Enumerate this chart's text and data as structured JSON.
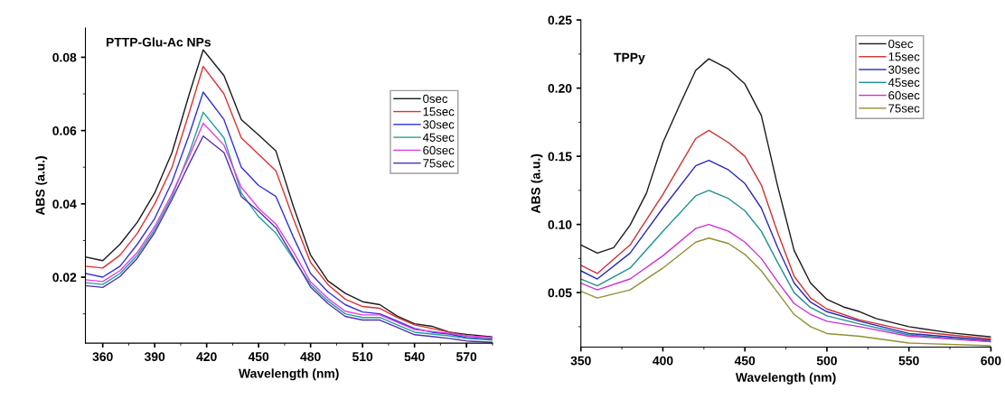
{
  "chart_data": [
    {
      "type": "line",
      "title": "PTTP-Glu-Ac NPs",
      "xlabel": "Wavelength (nm)",
      "ylabel": "ABS (a.u.)",
      "xlim": [
        350,
        585
      ],
      "xticks": [
        360,
        390,
        420,
        450,
        480,
        510,
        540,
        570
      ],
      "ylim": [
        0.002,
        0.088
      ],
      "yticks": [
        0.02,
        0.04,
        0.06,
        0.08
      ],
      "legend": "top right",
      "grid": false,
      "x": [
        350,
        360,
        370,
        380,
        390,
        400,
        410,
        418,
        430,
        440,
        450,
        460,
        470,
        480,
        490,
        500,
        510,
        520,
        530,
        540,
        550,
        560,
        570,
        585
      ],
      "series": [
        {
          "name": "0sec",
          "color": "#1a1a1a",
          "values": [
            0.0255,
            0.0245,
            0.029,
            0.035,
            0.043,
            0.054,
            0.07,
            0.082,
            0.075,
            0.063,
            0.0588,
            0.0544,
            0.0394,
            0.026,
            0.019,
            0.0156,
            0.0133,
            0.0125,
            0.0094,
            0.0073,
            0.0066,
            0.005,
            0.0044,
            0.0037
          ]
        },
        {
          "name": "15sec",
          "color": "#e03030",
          "values": [
            0.023,
            0.0225,
            0.026,
            0.032,
            0.04,
            0.05,
            0.065,
            0.0775,
            0.07,
            0.058,
            0.0535,
            0.049,
            0.036,
            0.024,
            0.018,
            0.014,
            0.012,
            0.0115,
            0.009,
            0.007,
            0.006,
            0.005,
            0.004,
            0.0035
          ]
        },
        {
          "name": "30sec",
          "color": "#3030e0",
          "values": [
            0.021,
            0.02,
            0.023,
            0.029,
            0.036,
            0.046,
            0.059,
            0.0705,
            0.063,
            0.05,
            0.045,
            0.042,
            0.031,
            0.021,
            0.016,
            0.0125,
            0.0105,
            0.01,
            0.008,
            0.006,
            0.005,
            0.0045,
            0.0035,
            0.003
          ]
        },
        {
          "name": "45sec",
          "color": "#20a0a0",
          "values": [
            0.0185,
            0.018,
            0.021,
            0.026,
            0.033,
            0.042,
            0.054,
            0.065,
            0.058,
            0.043,
            0.0365,
            0.032,
            0.025,
            0.018,
            0.0135,
            0.01,
            0.009,
            0.009,
            0.007,
            0.005,
            0.0045,
            0.004,
            0.0033,
            0.0028
          ]
        },
        {
          "name": "60sec",
          "color": "#e040e0",
          "values": [
            0.0193,
            0.0188,
            0.0218,
            0.0268,
            0.0338,
            0.0428,
            0.053,
            0.062,
            0.056,
            0.0445,
            0.0388,
            0.0345,
            0.027,
            0.0187,
            0.0142,
            0.0107,
            0.0097,
            0.0097,
            0.0077,
            0.0057,
            0.0052,
            0.0047,
            0.004,
            0.0035
          ]
        },
        {
          "name": "75sec",
          "color": "#5030b0",
          "values": [
            0.0177,
            0.0172,
            0.0202,
            0.0252,
            0.0322,
            0.0412,
            0.051,
            0.0585,
            0.054,
            0.042,
            0.038,
            0.0335,
            0.0255,
            0.0173,
            0.0128,
            0.0093,
            0.0083,
            0.0083,
            0.0063,
            0.0043,
            0.0038,
            0.0033,
            0.0026,
            0.0022
          ]
        }
      ]
    },
    {
      "type": "line",
      "title": "TPPy",
      "xlabel": "Wavelength (nm)",
      "ylabel": "ABS (a.u.)",
      "xlim": [
        350,
        600
      ],
      "xticks": [
        350,
        400,
        450,
        500,
        550,
        600
      ],
      "ylim": [
        0.01,
        0.25
      ],
      "yticks": [
        {
          "value": 0.05,
          "label": "0.05"
        },
        {
          "value": 0.1,
          "label": "0.10"
        },
        {
          "value": 0.15,
          "label": "0.15"
        },
        {
          "value": 0.2,
          "label": "0.20"
        },
        {
          "value": 0.25,
          "label": "0.25"
        }
      ],
      "legend": "top right",
      "grid": false,
      "x": [
        350,
        360,
        380,
        400,
        420,
        428,
        440,
        450,
        460,
        470,
        480,
        490,
        500,
        520,
        550,
        600
      ],
      "series": [
        {
          "name": "0sec",
          "color": "#1a1a1a",
          "x": [
            350,
            360,
            370,
            380,
            390,
            400,
            410,
            420,
            428,
            440,
            450,
            460,
            470,
            480,
            490,
            500,
            510,
            520,
            530,
            550,
            575,
            600
          ],
          "values": [
            0.085,
            0.079,
            0.083,
            0.0995,
            0.123,
            0.16,
            0.187,
            0.213,
            0.2215,
            0.214,
            0.203,
            0.18,
            0.128,
            0.081,
            0.057,
            0.045,
            0.0395,
            0.036,
            0.031,
            0.025,
            0.0205,
            0.0175
          ]
        },
        {
          "name": "15sec",
          "color": "#d03030",
          "values": [
            0.07,
            0.064,
            0.085,
            0.122,
            0.163,
            0.169,
            0.16,
            0.15,
            0.129,
            0.094,
            0.062,
            0.046,
            0.038,
            0.03,
            0.022,
            0.016
          ]
        },
        {
          "name": "30sec",
          "color": "#2828c0",
          "values": [
            0.066,
            0.06,
            0.079,
            0.112,
            0.143,
            0.147,
            0.14,
            0.13,
            0.112,
            0.083,
            0.057,
            0.043,
            0.036,
            0.029,
            0.02,
            0.015
          ]
        },
        {
          "name": "45sec",
          "color": "#209090",
          "values": [
            0.06,
            0.055,
            0.068,
            0.095,
            0.121,
            0.125,
            0.119,
            0.11,
            0.095,
            0.072,
            0.05,
            0.039,
            0.033,
            0.027,
            0.019,
            0.014
          ]
        },
        {
          "name": "60sec",
          "color": "#d030d0",
          "values": [
            0.057,
            0.052,
            0.06,
            0.077,
            0.097,
            0.1,
            0.095,
            0.087,
            0.075,
            0.058,
            0.042,
            0.034,
            0.029,
            0.025,
            0.018,
            0.014
          ]
        },
        {
          "name": "75sec",
          "color": "#909030",
          "values": [
            0.051,
            0.046,
            0.052,
            0.068,
            0.087,
            0.09,
            0.086,
            0.078,
            0.066,
            0.05,
            0.034,
            0.025,
            0.02,
            0.018,
            0.013,
            0.011
          ]
        }
      ]
    }
  ]
}
